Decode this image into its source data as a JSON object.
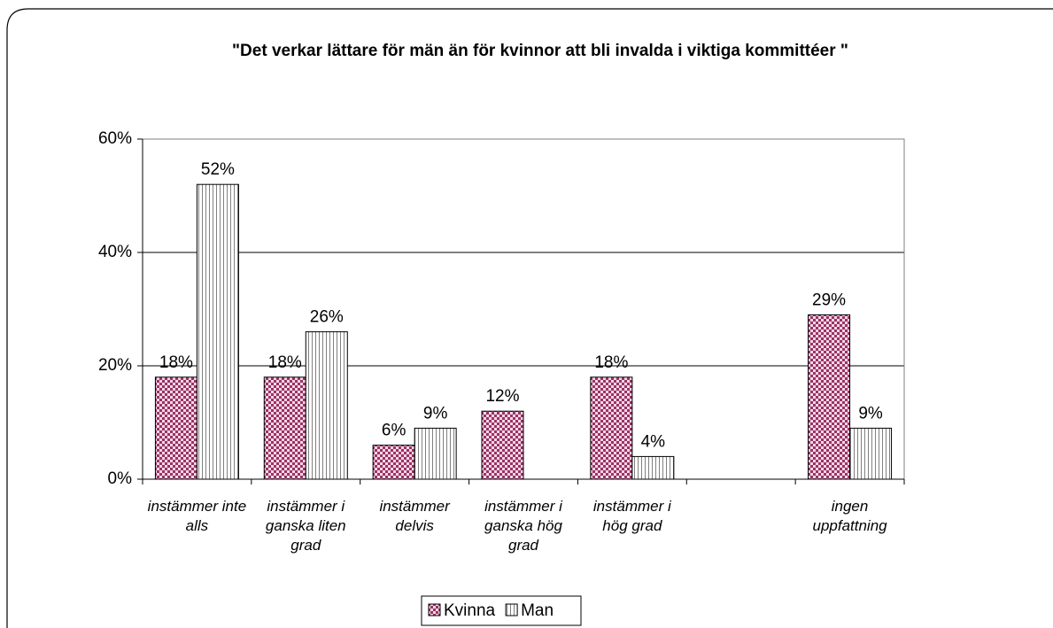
{
  "chart_data": {
    "type": "bar",
    "title": "\"Det verkar lättare för män än för kvinnor att bli invalda i viktiga kommittéer \"",
    "categories": [
      "instämmer inte alls",
      "instämmer i ganska liten grad",
      "instämmer delvis",
      "instämmer i ganska hög grad",
      "instämmer i hög grad",
      null,
      "ingen uppfattning"
    ],
    "series": [
      {
        "name": "Kvinna",
        "color": "#993366",
        "values": [
          18,
          18,
          6,
          12,
          18,
          null,
          29
        ],
        "value_labels": [
          "18%",
          "18%",
          "6%",
          "12%",
          "18%",
          null,
          "29%"
        ]
      },
      {
        "name": "Man",
        "color": "#808080",
        "values": [
          52,
          26,
          9,
          null,
          4,
          null,
          9
        ],
        "value_labels": [
          "52%",
          "26%",
          "9%",
          null,
          "4%",
          null,
          "9%"
        ]
      }
    ],
    "ylim": [
      0,
      60
    ],
    "yticks": [
      {
        "value": 0,
        "label": "0%"
      },
      {
        "value": 20,
        "label": "20%"
      },
      {
        "value": 40,
        "label": "40%"
      },
      {
        "value": 60,
        "label": "60%"
      }
    ],
    "grid": true,
    "legend": "bottom"
  }
}
